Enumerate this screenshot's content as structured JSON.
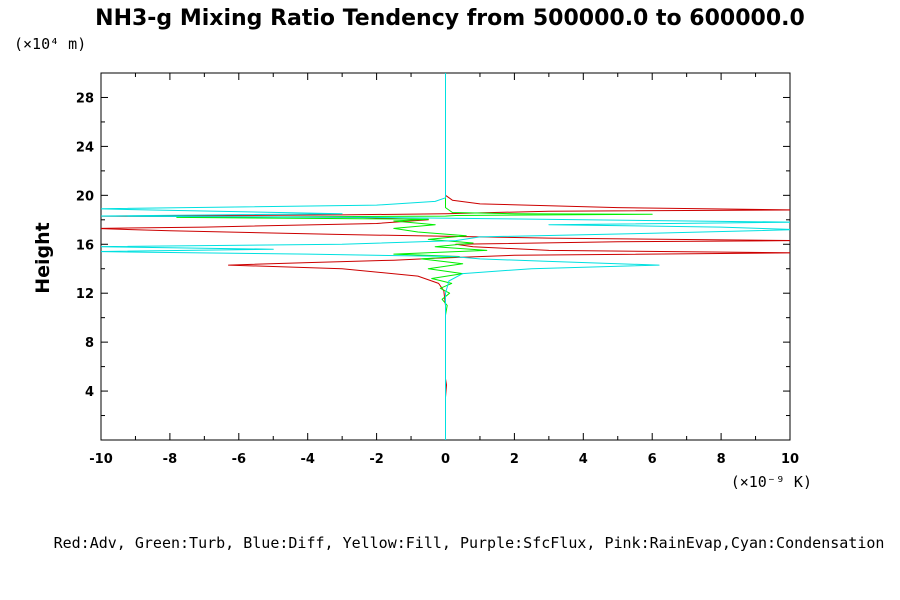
{
  "chart_data": {
    "type": "line",
    "title": "NH3-g Mixing Ratio Tendency from 500000.0 to 600000.0",
    "ylabel": "Height",
    "y_units": "(×10⁴ m)",
    "x_units": "(×10⁻⁹ K)",
    "xlim": [
      -10,
      10
    ],
    "ylim": [
      0,
      30
    ],
    "x_ticks": [
      -10,
      -8,
      -6,
      -4,
      -2,
      0,
      2,
      4,
      6,
      8,
      10
    ],
    "y_ticks": [
      4,
      8,
      12,
      16,
      20,
      24,
      28
    ],
    "legend_text": "Red:Adv, Green:Turb, Blue:Diff, Yellow:Fill, Purple:SfcFlux, Pink:RainEvap,Cyan:Condensation",
    "grid": false,
    "series": [
      {
        "name": "Adv",
        "color": "#cc0000",
        "points": [
          [
            0,
            0.2
          ],
          [
            0,
            3.5
          ],
          [
            0.03,
            4.5
          ],
          [
            0,
            5
          ],
          [
            0,
            11
          ],
          [
            -0.05,
            12.2
          ],
          [
            -0.2,
            12.8
          ],
          [
            -0.8,
            13.4
          ],
          [
            -3,
            14.0
          ],
          [
            -6.3,
            14.3
          ],
          [
            -4,
            14.5
          ],
          [
            -1.5,
            14.7
          ],
          [
            -0.3,
            14.85
          ],
          [
            2,
            15.1
          ],
          [
            10.2,
            15.3
          ],
          [
            3,
            15.5
          ],
          [
            0.8,
            15.8
          ],
          [
            0.3,
            16.0
          ],
          [
            5,
            16.2
          ],
          [
            10.2,
            16.3
          ],
          [
            3,
            16.5
          ],
          [
            -3,
            16.8
          ],
          [
            -8,
            17.1
          ],
          [
            -10.2,
            17.3
          ],
          [
            -7,
            17.4
          ],
          [
            -2,
            17.7
          ],
          [
            -0.5,
            18.0
          ],
          [
            -2.5,
            18.2
          ],
          [
            -10.2,
            18.3
          ],
          [
            -3,
            18.4
          ],
          [
            0,
            18.5
          ],
          [
            3,
            18.7
          ],
          [
            10.2,
            18.8
          ],
          [
            5,
            19.0
          ],
          [
            1,
            19.3
          ],
          [
            0.2,
            19.6
          ],
          [
            0,
            20
          ],
          [
            0,
            30
          ]
        ]
      },
      {
        "name": "Turb",
        "color": "#00ee00",
        "points": [
          [
            0,
            10.2
          ],
          [
            0.05,
            11
          ],
          [
            -0.1,
            11.5
          ],
          [
            0.12,
            12
          ],
          [
            -0.15,
            12.4
          ],
          [
            0.18,
            12.8
          ],
          [
            -0.4,
            13.2
          ],
          [
            0.5,
            13.6
          ],
          [
            -0.5,
            14.0
          ],
          [
            0.5,
            14.4
          ],
          [
            -0.7,
            14.8
          ],
          [
            0.4,
            15.0
          ],
          [
            -1.5,
            15.2
          ],
          [
            1.2,
            15.5
          ],
          [
            -0.3,
            15.8
          ],
          [
            0.8,
            16.1
          ],
          [
            -0.5,
            16.4
          ],
          [
            0.6,
            16.7
          ],
          [
            -0.8,
            17.0
          ],
          [
            -1.5,
            17.3
          ],
          [
            -0.3,
            17.6
          ],
          [
            -1.5,
            17.9
          ],
          [
            -0.5,
            18.05
          ],
          [
            -7.8,
            18.2
          ],
          [
            0,
            18.3
          ],
          [
            0.3,
            18.35
          ],
          [
            6,
            18.45
          ],
          [
            2,
            18.5
          ],
          [
            0.2,
            18.6
          ],
          [
            0,
            19
          ],
          [
            0,
            30
          ]
        ]
      },
      {
        "name": "Condensation",
        "color": "#00e0e0",
        "points": [
          [
            0,
            0
          ],
          [
            0,
            12
          ],
          [
            0.1,
            13
          ],
          [
            0.5,
            13.6
          ],
          [
            2.5,
            14.0
          ],
          [
            6.2,
            14.3
          ],
          [
            3,
            14.6
          ],
          [
            1,
            14.8
          ],
          [
            0.2,
            15.0
          ],
          [
            -4,
            15.2
          ],
          [
            -10.2,
            15.4
          ],
          [
            -5,
            15.6
          ],
          [
            -10.2,
            15.8
          ],
          [
            -3,
            16.0
          ],
          [
            0.3,
            16.3
          ],
          [
            1,
            16.6
          ],
          [
            6,
            16.9
          ],
          [
            10.2,
            17.2
          ],
          [
            8,
            17.4
          ],
          [
            3,
            17.6
          ],
          [
            10.2,
            17.8
          ],
          [
            4,
            18.0
          ],
          [
            -2,
            18.2
          ],
          [
            -10.2,
            18.3
          ],
          [
            -3,
            18.5
          ],
          [
            -10.2,
            18.9
          ],
          [
            -2,
            19.2
          ],
          [
            -0.3,
            19.5
          ],
          [
            0,
            19.8
          ],
          [
            0,
            30
          ]
        ]
      }
    ]
  }
}
